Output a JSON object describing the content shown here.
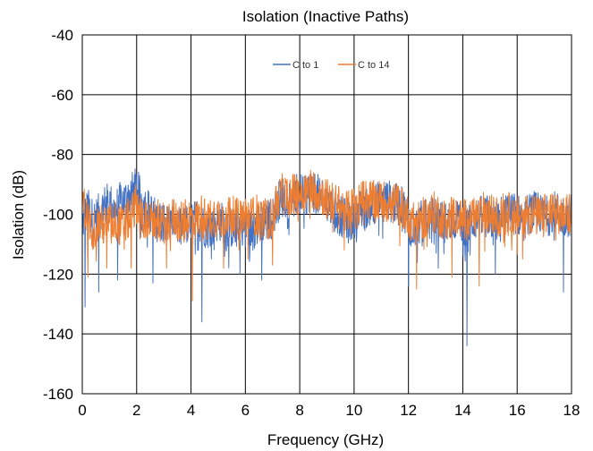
{
  "chart_data": {
    "type": "line",
    "title": "Isolation (Inactive Paths)",
    "xlabel": "Frequency (GHz)",
    "ylabel": "Isolation (dB)",
    "xlim": [
      0,
      18
    ],
    "ylim": [
      -160,
      -40
    ],
    "xticks": [
      0,
      2,
      4,
      6,
      8,
      10,
      12,
      14,
      16,
      18
    ],
    "yticks": [
      -40,
      -60,
      -80,
      -100,
      -120,
      -140,
      -160
    ],
    "grid": true,
    "legend_position": "top-center",
    "series": [
      {
        "name": "C to 1",
        "color": "#4472C4",
        "x": [
          0.0,
          0.2,
          0.4,
          0.6,
          0.8,
          1.0,
          1.2,
          1.4,
          1.6,
          1.8,
          2.0,
          2.2,
          2.4,
          2.6,
          2.8,
          3.0,
          3.2,
          3.4,
          3.6,
          3.8,
          4.0,
          4.2,
          4.4,
          4.6,
          4.8,
          5.0,
          5.2,
          5.4,
          5.6,
          5.8,
          6.0,
          6.2,
          6.4,
          6.6,
          6.8,
          7.0,
          7.2,
          7.4,
          7.6,
          7.8,
          8.0,
          8.2,
          8.4,
          8.6,
          8.8,
          9.0,
          9.2,
          9.4,
          9.6,
          9.8,
          10.0,
          10.2,
          10.4,
          10.6,
          10.8,
          11.0,
          11.2,
          11.4,
          11.6,
          11.8,
          12.0,
          12.2,
          12.4,
          12.6,
          12.8,
          13.0,
          13.2,
          13.4,
          13.6,
          13.8,
          14.0,
          14.2,
          14.4,
          14.6,
          14.8,
          15.0,
          15.2,
          15.4,
          15.6,
          15.8,
          16.0,
          16.2,
          16.4,
          16.6,
          16.8,
          17.0,
          17.2,
          17.4,
          17.6,
          17.8,
          18.0
        ],
        "y": [
          -103,
          -98,
          -102,
          -100,
          -97,
          -96,
          -99,
          -96,
          -95,
          -93,
          -91,
          -96,
          -98,
          -100,
          -103,
          -101,
          -104,
          -102,
          -105,
          -103,
          -104,
          -101,
          -103,
          -105,
          -104,
          -102,
          -103,
          -104,
          -105,
          -104,
          -103,
          -105,
          -104,
          -103,
          -102,
          -101,
          -96,
          -94,
          -95,
          -94,
          -93,
          -94,
          -92,
          -93,
          -94,
          -96,
          -98,
          -100,
          -101,
          -103,
          -101,
          -99,
          -98,
          -97,
          -96,
          -96,
          -95,
          -96,
          -97,
          -97,
          -103,
          -104,
          -103,
          -101,
          -102,
          -100,
          -102,
          -103,
          -101,
          -102,
          -103,
          -104,
          -102,
          -101,
          -100,
          -101,
          -102,
          -101,
          -100,
          -99,
          -100,
          -101,
          -100,
          -99,
          -100,
          -101,
          -100,
          -99,
          -100,
          -101,
          -100
        ],
        "spike_x": [
          0.1,
          0.6,
          1.3,
          2.6,
          4.4,
          5.8,
          6.6,
          12.0,
          13.1,
          14.15,
          15.2,
          17.7
        ],
        "spike_y": [
          -131,
          -126,
          -122,
          -123,
          -136,
          -120,
          -122,
          -124,
          -118,
          -144,
          -120,
          -126
        ]
      },
      {
        "name": "C to 14",
        "color": "#ED7D31",
        "x": [
          0.0,
          0.2,
          0.4,
          0.6,
          0.8,
          1.0,
          1.2,
          1.4,
          1.6,
          1.8,
          2.0,
          2.2,
          2.4,
          2.6,
          2.8,
          3.0,
          3.2,
          3.4,
          3.6,
          3.8,
          4.0,
          4.2,
          4.4,
          4.6,
          4.8,
          5.0,
          5.2,
          5.4,
          5.6,
          5.8,
          6.0,
          6.2,
          6.4,
          6.6,
          6.8,
          7.0,
          7.2,
          7.4,
          7.6,
          7.8,
          8.0,
          8.2,
          8.4,
          8.6,
          8.8,
          9.0,
          9.2,
          9.4,
          9.6,
          9.8,
          10.0,
          10.2,
          10.4,
          10.6,
          10.8,
          11.0,
          11.2,
          11.4,
          11.6,
          11.8,
          12.0,
          12.2,
          12.4,
          12.6,
          12.8,
          13.0,
          13.2,
          13.4,
          13.6,
          13.8,
          14.0,
          14.2,
          14.4,
          14.6,
          14.8,
          15.0,
          15.2,
          15.4,
          15.6,
          15.8,
          16.0,
          16.2,
          16.4,
          16.6,
          16.8,
          17.0,
          17.2,
          17.4,
          17.6,
          17.8,
          18.0
        ],
        "y": [
          -95,
          -102,
          -105,
          -103,
          -104,
          -103,
          -102,
          -104,
          -103,
          -100,
          -96,
          -101,
          -102,
          -103,
          -102,
          -103,
          -102,
          -101,
          -103,
          -102,
          -101,
          -102,
          -100,
          -102,
          -101,
          -100,
          -101,
          -100,
          -101,
          -102,
          -100,
          -101,
          -100,
          -101,
          -102,
          -101,
          -95,
          -93,
          -94,
          -93,
          -93,
          -92,
          -91,
          -92,
          -93,
          -95,
          -96,
          -97,
          -98,
          -99,
          -97,
          -96,
          -95,
          -95,
          -96,
          -95,
          -96,
          -97,
          -96,
          -98,
          -101,
          -103,
          -102,
          -101,
          -100,
          -99,
          -101,
          -102,
          -100,
          -101,
          -102,
          -101,
          -100,
          -101,
          -99,
          -100,
          -101,
          -100,
          -99,
          -100,
          -101,
          -100,
          -99,
          -100,
          -101,
          -100,
          -99,
          -100,
          -101,
          -100,
          -99
        ],
        "spike_x": [
          0.2,
          0.9,
          1.8,
          3.1,
          4.05,
          5.2,
          6.1,
          7.0,
          12.3,
          13.6,
          14.6,
          16.2
        ],
        "spike_y": [
          -121,
          -118,
          -118,
          -118,
          -129,
          -118,
          -115,
          -117,
          -125,
          -121,
          -124,
          -115
        ]
      }
    ]
  }
}
